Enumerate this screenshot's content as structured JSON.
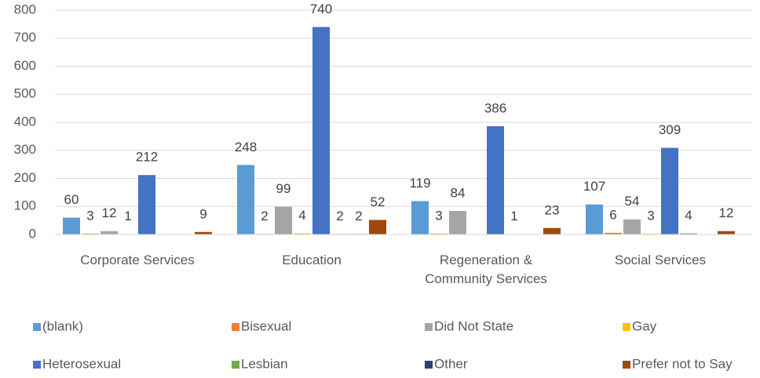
{
  "chart_data": {
    "type": "bar",
    "categories": [
      "Corporate Services",
      "Education",
      "Regeneration & Community Services",
      "Social Services"
    ],
    "series": [
      {
        "name": "(blank)",
        "color": "#5b9bd5",
        "values": [
          60,
          248,
          119,
          107
        ]
      },
      {
        "name": "Bisexual",
        "color": "#ed7d31",
        "values": [
          3,
          2,
          3,
          6
        ]
      },
      {
        "name": "Did Not State",
        "color": "#a5a5a5",
        "values": [
          12,
          99,
          84,
          54
        ]
      },
      {
        "name": "Gay",
        "color": "#ffc000",
        "values": [
          1,
          4,
          null,
          3
        ]
      },
      {
        "name": "Heterosexual",
        "color": "#4472c4",
        "values": [
          212,
          740,
          386,
          309
        ]
      },
      {
        "name": "Lesbian",
        "color": "#70ad47",
        "values": [
          null,
          2,
          1,
          4
        ]
      },
      {
        "name": "Other",
        "color": "#264478",
        "values": [
          null,
          2,
          null,
          null
        ]
      },
      {
        "name": "Prefer not to Say",
        "color": "#9e480e",
        "values": [
          9,
          52,
          23,
          12
        ]
      }
    ],
    "ylim": [
      0,
      800
    ],
    "yticks": [
      0,
      100,
      200,
      300,
      400,
      500,
      600,
      700,
      800
    ],
    "grid": true,
    "legend": "bottom"
  }
}
